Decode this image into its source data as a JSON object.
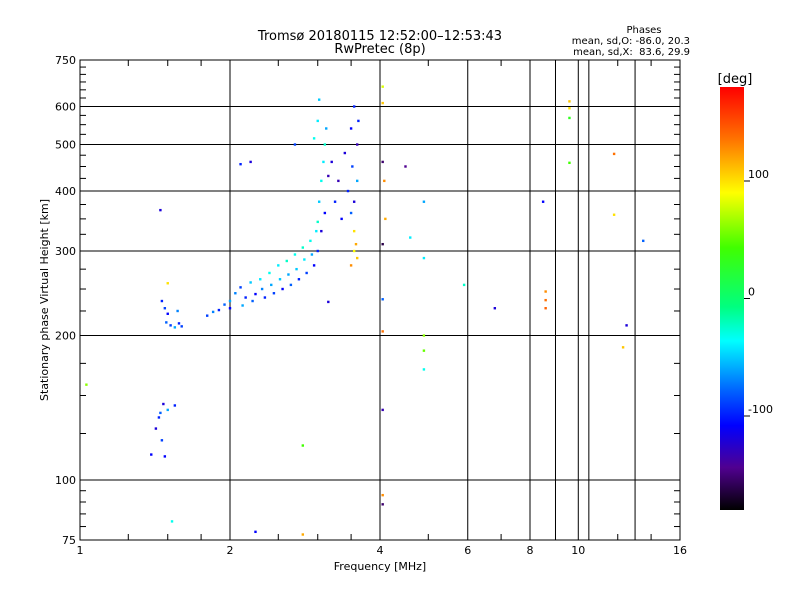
{
  "chart_data": {
    "type": "scatter",
    "title": "Tromsø 20180115 12:52:00–12:53:43",
    "subtitle": "RwPretec (8p)",
    "xlabel": "Frequency [MHz]",
    "ylabel": "Stationary phase Virtual Height [km]",
    "x_scale": "log",
    "y_scale": "log",
    "xlim": [
      1,
      16
    ],
    "ylim": [
      75,
      750
    ],
    "x_ticks": [
      "1",
      "2",
      "4",
      "6",
      "8",
      "10",
      "16"
    ],
    "x_tick_values": [
      1,
      2,
      4,
      6,
      8,
      10,
      16
    ],
    "y_ticks": [
      "75",
      "100",
      "200",
      "300",
      "400",
      "500",
      "600",
      "750"
    ],
    "y_tick_values": [
      75,
      100,
      200,
      300,
      400,
      500,
      600,
      750
    ],
    "grid": true,
    "stats": {
      "heading": "Phases",
      "line1": "mean, sd,O: -86.0, 20.3",
      "line2": "mean, sd,X:  83.6, 29.9"
    },
    "colorbar": {
      "label": "[deg]",
      "ticks": [
        "100",
        "0",
        "-100"
      ],
      "tick_values": [
        100,
        0,
        -100
      ],
      "range": [
        -180,
        180
      ]
    },
    "points": [
      {
        "x": 1.03,
        "y": 158,
        "phase": 60
      },
      {
        "x": 1.45,
        "y": 365,
        "phase": -120
      },
      {
        "x": 1.46,
        "y": 236,
        "phase": -100
      },
      {
        "x": 1.48,
        "y": 228,
        "phase": -90
      },
      {
        "x": 1.49,
        "y": 213,
        "phase": -80
      },
      {
        "x": 1.5,
        "y": 222,
        "phase": -110
      },
      {
        "x": 1.52,
        "y": 210,
        "phase": -90
      },
      {
        "x": 1.55,
        "y": 208,
        "phase": -60
      },
      {
        "x": 1.58,
        "y": 212,
        "phase": -100
      },
      {
        "x": 1.57,
        "y": 225,
        "phase": -70
      },
      {
        "x": 1.6,
        "y": 209,
        "phase": -90
      },
      {
        "x": 1.5,
        "y": 257,
        "phase": 100
      },
      {
        "x": 1.39,
        "y": 113,
        "phase": -110
      },
      {
        "x": 1.42,
        "y": 128,
        "phase": -120
      },
      {
        "x": 1.44,
        "y": 135,
        "phase": -100
      },
      {
        "x": 1.45,
        "y": 138,
        "phase": -80
      },
      {
        "x": 1.47,
        "y": 144,
        "phase": -120
      },
      {
        "x": 1.5,
        "y": 140,
        "phase": -60
      },
      {
        "x": 1.55,
        "y": 143,
        "phase": -100
      },
      {
        "x": 1.46,
        "y": 121,
        "phase": -90
      },
      {
        "x": 1.48,
        "y": 112,
        "phase": -110
      },
      {
        "x": 1.53,
        "y": 82,
        "phase": -30
      },
      {
        "x": 1.8,
        "y": 220,
        "phase": -90
      },
      {
        "x": 1.85,
        "y": 224,
        "phase": -70
      },
      {
        "x": 1.9,
        "y": 226,
        "phase": -100
      },
      {
        "x": 1.95,
        "y": 232,
        "phase": -80
      },
      {
        "x": 2.0,
        "y": 236,
        "phase": -60
      },
      {
        "x": 2.0,
        "y": 228,
        "phase": -110
      },
      {
        "x": 2.05,
        "y": 245,
        "phase": -70
      },
      {
        "x": 2.1,
        "y": 252,
        "phase": -90
      },
      {
        "x": 2.12,
        "y": 231,
        "phase": -60
      },
      {
        "x": 2.15,
        "y": 240,
        "phase": -100
      },
      {
        "x": 2.2,
        "y": 258,
        "phase": -50
      },
      {
        "x": 2.22,
        "y": 236,
        "phase": -80
      },
      {
        "x": 2.25,
        "y": 244,
        "phase": -110
      },
      {
        "x": 2.3,
        "y": 262,
        "phase": -40
      },
      {
        "x": 2.32,
        "y": 250,
        "phase": -70
      },
      {
        "x": 2.35,
        "y": 240,
        "phase": -100
      },
      {
        "x": 2.4,
        "y": 270,
        "phase": -30
      },
      {
        "x": 2.42,
        "y": 255,
        "phase": -60
      },
      {
        "x": 2.45,
        "y": 245,
        "phase": -90
      },
      {
        "x": 2.5,
        "y": 280,
        "phase": -40
      },
      {
        "x": 2.52,
        "y": 262,
        "phase": -50
      },
      {
        "x": 2.55,
        "y": 250,
        "phase": -110
      },
      {
        "x": 2.6,
        "y": 286,
        "phase": -20
      },
      {
        "x": 2.62,
        "y": 268,
        "phase": -60
      },
      {
        "x": 2.65,
        "y": 255,
        "phase": -80
      },
      {
        "x": 2.7,
        "y": 295,
        "phase": -30
      },
      {
        "x": 2.72,
        "y": 275,
        "phase": -50
      },
      {
        "x": 2.75,
        "y": 262,
        "phase": -100
      },
      {
        "x": 2.8,
        "y": 305,
        "phase": -20
      },
      {
        "x": 2.82,
        "y": 288,
        "phase": -40
      },
      {
        "x": 2.85,
        "y": 270,
        "phase": -90
      },
      {
        "x": 2.9,
        "y": 315,
        "phase": -30
      },
      {
        "x": 2.92,
        "y": 295,
        "phase": -60
      },
      {
        "x": 2.95,
        "y": 280,
        "phase": -110
      },
      {
        "x": 2.98,
        "y": 330,
        "phase": -40
      },
      {
        "x": 3.0,
        "y": 345,
        "phase": -20
      },
      {
        "x": 3.0,
        "y": 300,
        "phase": -100
      },
      {
        "x": 3.02,
        "y": 380,
        "phase": -50
      },
      {
        "x": 3.05,
        "y": 420,
        "phase": -30
      },
      {
        "x": 3.05,
        "y": 330,
        "phase": -120
      },
      {
        "x": 3.08,
        "y": 460,
        "phase": -40
      },
      {
        "x": 3.1,
        "y": 500,
        "phase": -20
      },
      {
        "x": 3.1,
        "y": 360,
        "phase": -110
      },
      {
        "x": 3.12,
        "y": 540,
        "phase": -60
      },
      {
        "x": 3.0,
        "y": 560,
        "phase": -40
      },
      {
        "x": 2.95,
        "y": 515,
        "phase": -30
      },
      {
        "x": 3.02,
        "y": 620,
        "phase": -50
      },
      {
        "x": 3.15,
        "y": 430,
        "phase": -130
      },
      {
        "x": 3.2,
        "y": 460,
        "phase": -120
      },
      {
        "x": 3.25,
        "y": 380,
        "phase": -100
      },
      {
        "x": 3.3,
        "y": 420,
        "phase": -130
      },
      {
        "x": 3.35,
        "y": 350,
        "phase": -110
      },
      {
        "x": 3.4,
        "y": 480,
        "phase": -120
      },
      {
        "x": 3.45,
        "y": 400,
        "phase": -100
      },
      {
        "x": 3.5,
        "y": 360,
        "phase": -80
      },
      {
        "x": 3.5,
        "y": 540,
        "phase": -110
      },
      {
        "x": 3.52,
        "y": 450,
        "phase": -90
      },
      {
        "x": 3.55,
        "y": 600,
        "phase": -100
      },
      {
        "x": 3.55,
        "y": 380,
        "phase": -120
      },
      {
        "x": 3.6,
        "y": 500,
        "phase": -130
      },
      {
        "x": 3.6,
        "y": 420,
        "phase": -60
      },
      {
        "x": 3.62,
        "y": 560,
        "phase": -100
      },
      {
        "x": 3.55,
        "y": 330,
        "phase": 100
      },
      {
        "x": 3.58,
        "y": 310,
        "phase": 120
      },
      {
        "x": 3.6,
        "y": 290,
        "phase": 110
      },
      {
        "x": 3.5,
        "y": 280,
        "phase": 130
      },
      {
        "x": 3.55,
        "y": 300,
        "phase": 90
      },
      {
        "x": 3.15,
        "y": 235,
        "phase": -120
      },
      {
        "x": 2.8,
        "y": 118,
        "phase": 40
      },
      {
        "x": 2.8,
        "y": 77,
        "phase": 120
      },
      {
        "x": 2.25,
        "y": 78,
        "phase": -110
      },
      {
        "x": 2.1,
        "y": 455,
        "phase": -100
      },
      {
        "x": 2.2,
        "y": 460,
        "phase": -120
      },
      {
        "x": 2.7,
        "y": 500,
        "phase": -90
      },
      {
        "x": 4.05,
        "y": 660,
        "phase": 80
      },
      {
        "x": 4.05,
        "y": 610,
        "phase": 110
      },
      {
        "x": 4.05,
        "y": 460,
        "phase": -150
      },
      {
        "x": 4.08,
        "y": 420,
        "phase": 130
      },
      {
        "x": 4.1,
        "y": 350,
        "phase": 120
      },
      {
        "x": 4.05,
        "y": 310,
        "phase": -160
      },
      {
        "x": 4.05,
        "y": 238,
        "phase": -80
      },
      {
        "x": 4.05,
        "y": 204,
        "phase": 140
      },
      {
        "x": 4.05,
        "y": 140,
        "phase": -130
      },
      {
        "x": 4.05,
        "y": 93,
        "phase": 130
      },
      {
        "x": 4.05,
        "y": 89,
        "phase": -150
      },
      {
        "x": 4.5,
        "y": 450,
        "phase": -140
      },
      {
        "x": 4.6,
        "y": 320,
        "phase": -40
      },
      {
        "x": 4.9,
        "y": 380,
        "phase": -60
      },
      {
        "x": 4.9,
        "y": 290,
        "phase": -40
      },
      {
        "x": 4.9,
        "y": 200,
        "phase": 60
      },
      {
        "x": 4.9,
        "y": 186,
        "phase": 50
      },
      {
        "x": 4.9,
        "y": 170,
        "phase": -30
      },
      {
        "x": 5.9,
        "y": 255,
        "phase": -20
      },
      {
        "x": 6.8,
        "y": 228,
        "phase": -120
      },
      {
        "x": 8.5,
        "y": 380,
        "phase": -110
      },
      {
        "x": 8.6,
        "y": 247,
        "phase": 130
      },
      {
        "x": 8.6,
        "y": 237,
        "phase": 140
      },
      {
        "x": 8.6,
        "y": 228,
        "phase": 145
      },
      {
        "x": 9.6,
        "y": 615,
        "phase": 110
      },
      {
        "x": 9.6,
        "y": 595,
        "phase": 100
      },
      {
        "x": 9.6,
        "y": 568,
        "phase": 30
      },
      {
        "x": 9.6,
        "y": 458,
        "phase": 40
      },
      {
        "x": 11.8,
        "y": 478,
        "phase": 140
      },
      {
        "x": 11.8,
        "y": 357,
        "phase": 100
      },
      {
        "x": 12.3,
        "y": 189,
        "phase": 110
      },
      {
        "x": 12.5,
        "y": 210,
        "phase": -120
      },
      {
        "x": 13.5,
        "y": 315,
        "phase": -80
      }
    ]
  }
}
